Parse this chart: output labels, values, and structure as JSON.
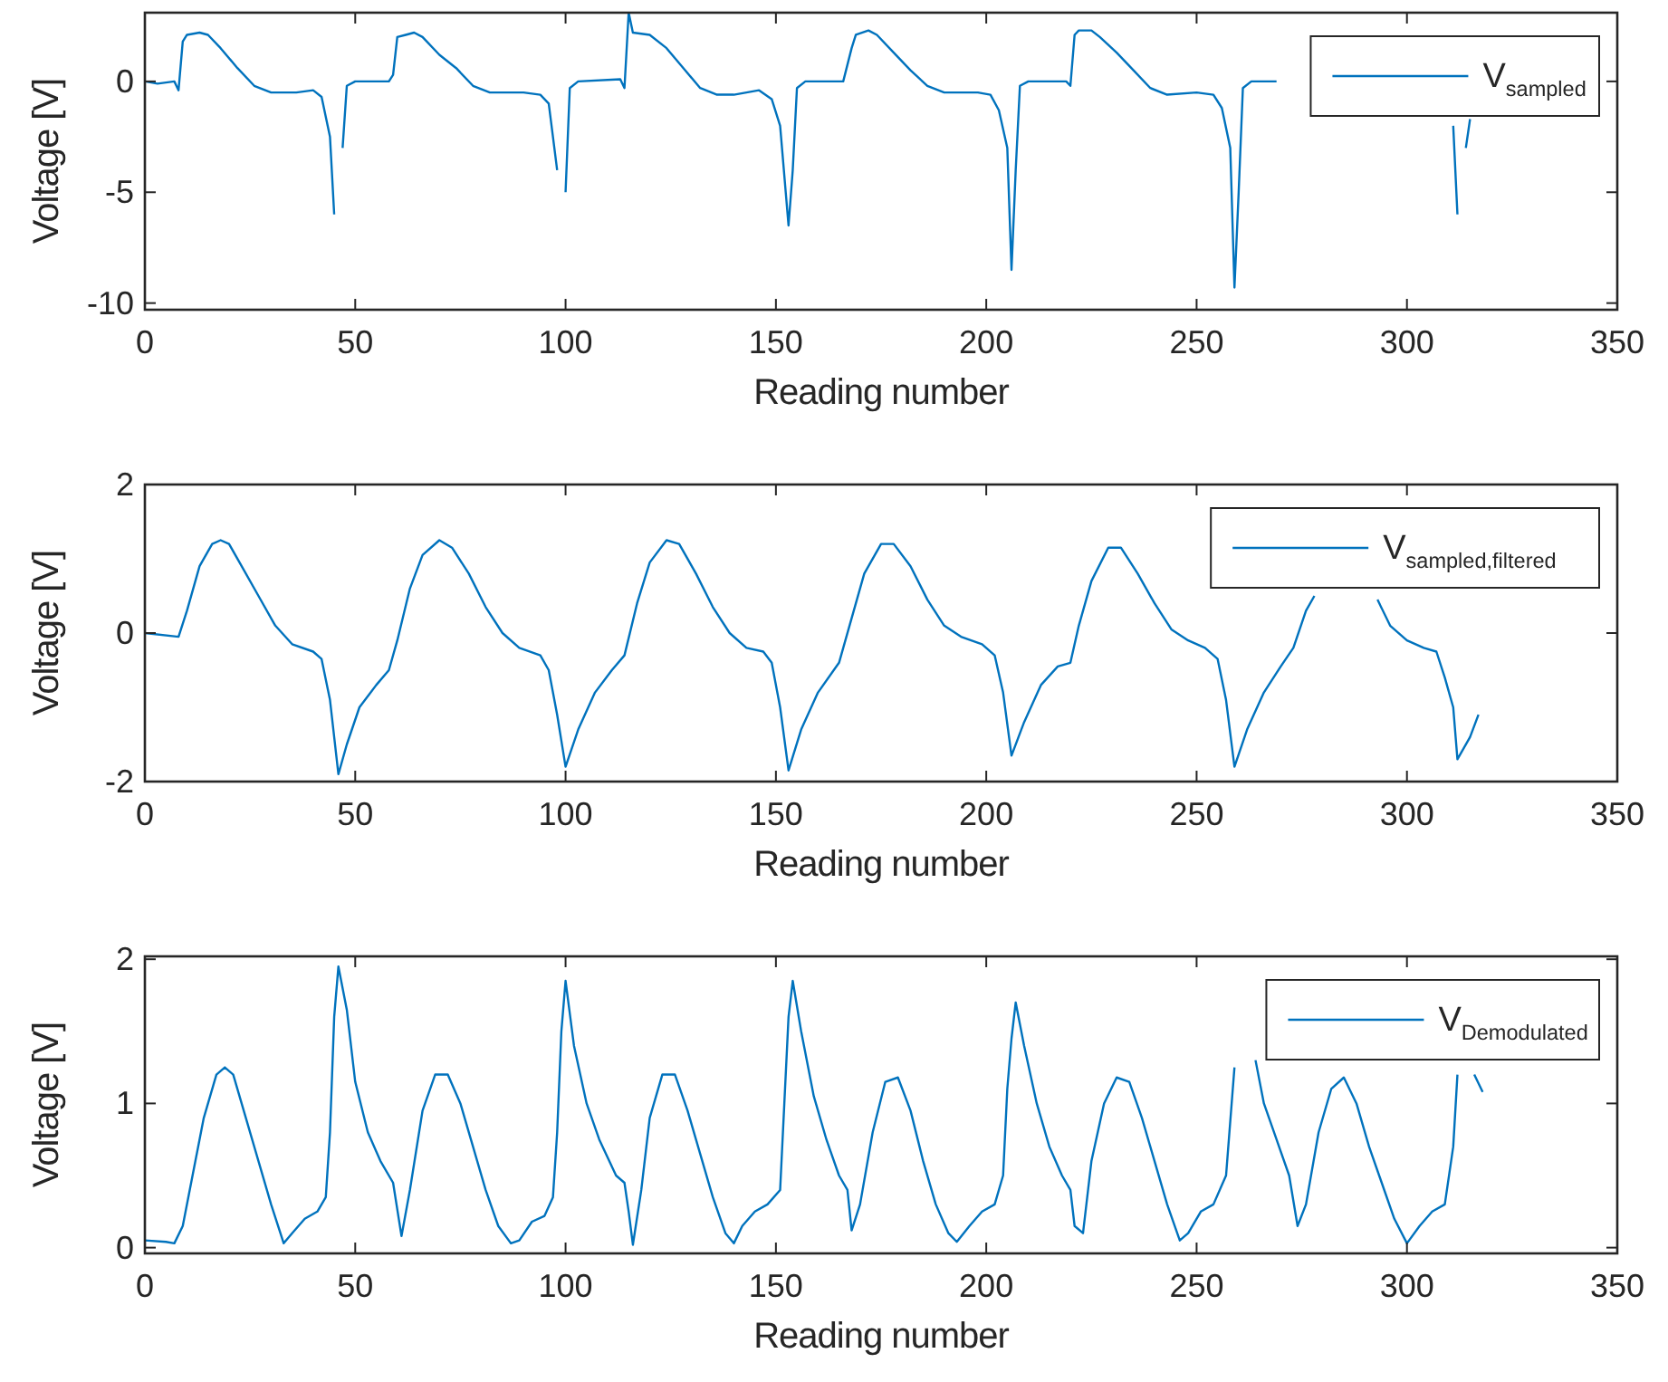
{
  "chart_data": [
    {
      "type": "line",
      "xlabel": "Reading number",
      "ylabel": "Voltage [V]",
      "xlim": [
        0,
        350
      ],
      "xticks": [
        0,
        50,
        100,
        150,
        200,
        250,
        300,
        350
      ],
      "ylim": [
        -10.3,
        3.1
      ],
      "yticks": [
        -10,
        -5,
        0
      ],
      "legend": "top right",
      "series": [
        {
          "name": "V$_{sampled}$",
          "color": "#0072bd",
          "x": [
            0,
            3,
            7,
            8,
            9,
            10,
            13,
            15,
            18,
            22,
            26,
            30,
            36,
            40,
            42,
            44,
            45,
            46,
            47,
            48,
            50,
            58,
            59,
            60,
            62,
            64,
            66,
            70,
            74,
            78,
            82,
            90,
            94,
            96,
            98,
            99,
            100,
            101,
            103,
            113,
            114,
            115,
            116,
            120,
            124,
            128,
            132,
            136,
            140,
            146,
            149,
            151,
            153,
            154,
            155,
            157,
            166,
            168,
            169,
            172,
            174,
            178,
            182,
            186,
            190,
            198,
            201,
            203,
            205,
            206,
            207,
            208,
            210,
            219,
            220,
            221,
            222,
            225,
            227,
            231,
            235,
            239,
            243,
            250,
            254,
            256,
            258,
            259,
            260,
            261,
            263,
            269,
            290,
            311,
            312,
            313,
            314,
            315
          ],
          "values": [
            0,
            -0.1,
            0,
            -0.4,
            1.8,
            2.1,
            2.2,
            2.1,
            1.5,
            0.6,
            -0.2,
            -0.5,
            -0.5,
            -0.4,
            -0.7,
            -2.5,
            -6,
            null,
            -3,
            -0.2,
            0,
            0,
            0.3,
            2,
            2.1,
            2.2,
            2,
            1.2,
            0.6,
            -0.2,
            -0.5,
            -0.5,
            -0.6,
            -1,
            -4,
            null,
            -5,
            -0.3,
            0,
            0.1,
            -0.3,
            3.1,
            2.2,
            2.1,
            1.5,
            0.6,
            -0.3,
            -0.6,
            -0.6,
            -0.4,
            -0.8,
            -2,
            -6.5,
            -4,
            -0.3,
            0,
            0,
            1.5,
            2.1,
            2.3,
            2.1,
            1.3,
            0.5,
            -0.2,
            -0.5,
            -0.5,
            -0.6,
            -1.3,
            -3,
            -8.5,
            -4,
            -0.2,
            0,
            0,
            -0.2,
            2.1,
            2.3,
            2.3,
            2,
            1.3,
            0.5,
            -0.3,
            -0.6,
            -0.5,
            -0.6,
            -1.2,
            -3,
            -9.3,
            -5,
            -0.3,
            0,
            0,
            null,
            -2,
            -6,
            null,
            -3,
            -1.7
          ]
        }
      ]
    },
    {
      "type": "line",
      "xlabel": "Reading number",
      "ylabel": "Voltage [V]",
      "xlim": [
        0,
        350
      ],
      "xticks": [
        0,
        50,
        100,
        150,
        200,
        250,
        300,
        350
      ],
      "ylim": [
        -2,
        2
      ],
      "yticks": [
        -2,
        0,
        2
      ],
      "legend": "top right",
      "series": [
        {
          "name": "V$_{sampled,filtered}$",
          "color": "#0072bd",
          "x": [
            0,
            8,
            10,
            13,
            16,
            18,
            20,
            23,
            27,
            31,
            35,
            40,
            42,
            44,
            46,
            48,
            51,
            55,
            58,
            60,
            63,
            66,
            70,
            73,
            77,
            81,
            85,
            89,
            94,
            96,
            98,
            100,
            103,
            107,
            111,
            114,
            117,
            120,
            124,
            127,
            131,
            135,
            139,
            143,
            147,
            149,
            151,
            153,
            156,
            160,
            165,
            168,
            171,
            175,
            178,
            182,
            186,
            190,
            194,
            199,
            202,
            204,
            206,
            209,
            213,
            217,
            220,
            222,
            225,
            229,
            232,
            236,
            240,
            244,
            248,
            252,
            255,
            257,
            259,
            262,
            266,
            270,
            273,
            276,
            278,
            285,
            293,
            296,
            300,
            304,
            307,
            309,
            311,
            312,
            315,
            317
          ],
          "values": [
            0,
            -0.05,
            0.3,
            0.9,
            1.2,
            1.25,
            1.2,
            0.9,
            0.5,
            0.1,
            -0.15,
            -0.25,
            -0.35,
            -0.9,
            -1.9,
            -1.5,
            -1,
            -0.7,
            -0.5,
            -0.1,
            0.6,
            1.05,
            1.25,
            1.15,
            0.8,
            0.35,
            0,
            -0.2,
            -0.3,
            -0.5,
            -1.1,
            -1.8,
            -1.3,
            -0.8,
            -0.5,
            -0.3,
            0.4,
            0.95,
            1.25,
            1.2,
            0.8,
            0.35,
            0,
            -0.2,
            -0.25,
            -0.4,
            -1,
            -1.85,
            -1.3,
            -0.8,
            -0.4,
            0.2,
            0.8,
            1.2,
            1.2,
            0.9,
            0.45,
            0.1,
            -0.05,
            -0.15,
            -0.3,
            -0.8,
            -1.65,
            -1.2,
            -0.7,
            -0.45,
            -0.4,
            0.1,
            0.7,
            1.15,
            1.15,
            0.8,
            0.4,
            0.05,
            -0.1,
            -0.2,
            -0.35,
            -0.9,
            -1.8,
            -1.3,
            -0.8,
            -0.45,
            -0.2,
            0.3,
            0.5,
            null,
            0.45,
            0.1,
            -0.1,
            -0.2,
            -0.25,
            -0.6,
            -1,
            -1.7,
            -1.4,
            -1.1
          ]
        }
      ]
    },
    {
      "type": "line",
      "xlabel": "Reading number",
      "ylabel": "Voltage [V]",
      "xlim": [
        0,
        350
      ],
      "xticks": [
        0,
        50,
        100,
        150,
        200,
        250,
        300,
        350
      ],
      "ylim": [
        -0.04,
        2.02
      ],
      "yticks": [
        0,
        1,
        2
      ],
      "legend": "top right",
      "series": [
        {
          "name": "V$_{Demodulated}$",
          "color": "#0072bd",
          "x": [
            0,
            5,
            7,
            9,
            12,
            14,
            17,
            19,
            21,
            24,
            27,
            30,
            33,
            35,
            38,
            41,
            43,
            44,
            45,
            46,
            48,
            50,
            53,
            56,
            59,
            61,
            63,
            66,
            69,
            72,
            75,
            78,
            81,
            84,
            87,
            89,
            92,
            95,
            97,
            98,
            99,
            100,
            102,
            105,
            108,
            112,
            114,
            115,
            116,
            118,
            120,
            123,
            126,
            129,
            132,
            135,
            138,
            140,
            142,
            145,
            148,
            151,
            152,
            153,
            154,
            156,
            159,
            162,
            165,
            167,
            168,
            170,
            173,
            176,
            179,
            182,
            185,
            188,
            191,
            193,
            196,
            199,
            202,
            204,
            205,
            206,
            207,
            209,
            212,
            215,
            218,
            220,
            221,
            223,
            225,
            228,
            231,
            234,
            237,
            240,
            243,
            246,
            248,
            251,
            254,
            257,
            259,
            261,
            264,
            266,
            269,
            272,
            274,
            276,
            279,
            282,
            285,
            288,
            291,
            294,
            297,
            300,
            303,
            306,
            309,
            311,
            312,
            314,
            316,
            318
          ],
          "values": [
            0.05,
            0.04,
            0.03,
            0.15,
            0.6,
            0.9,
            1.2,
            1.25,
            1.2,
            0.9,
            0.6,
            0.3,
            0.03,
            0.1,
            0.2,
            0.25,
            0.35,
            0.8,
            1.6,
            1.95,
            1.65,
            1.15,
            0.8,
            0.6,
            0.45,
            0.08,
            0.4,
            0.95,
            1.2,
            1.2,
            1,
            0.7,
            0.4,
            0.15,
            0.03,
            0.05,
            0.18,
            0.22,
            0.35,
            0.8,
            1.5,
            1.85,
            1.4,
            1,
            0.75,
            0.5,
            0.45,
            0.25,
            0.02,
            0.4,
            0.9,
            1.2,
            1.2,
            0.95,
            0.65,
            0.35,
            0.1,
            0.03,
            0.15,
            0.25,
            0.3,
            0.4,
            1,
            1.6,
            1.85,
            1.5,
            1.05,
            0.75,
            0.5,
            0.4,
            0.12,
            0.3,
            0.8,
            1.15,
            1.18,
            0.95,
            0.6,
            0.3,
            0.1,
            0.04,
            0.15,
            0.25,
            0.3,
            0.5,
            1.1,
            1.45,
            1.7,
            1.4,
            1,
            0.7,
            0.5,
            0.4,
            0.15,
            0.1,
            0.6,
            1,
            1.18,
            1.15,
            0.9,
            0.6,
            0.3,
            0.05,
            0.1,
            0.25,
            0.3,
            0.5,
            1.25,
            null,
            1.3,
            1,
            0.75,
            0.5,
            0.15,
            0.3,
            0.8,
            1.1,
            1.18,
            1,
            0.7,
            0.45,
            0.2,
            0.03,
            0.15,
            0.25,
            0.3,
            0.7,
            1.2,
            null,
            1.2,
            1.08
          ]
        }
      ]
    }
  ]
}
